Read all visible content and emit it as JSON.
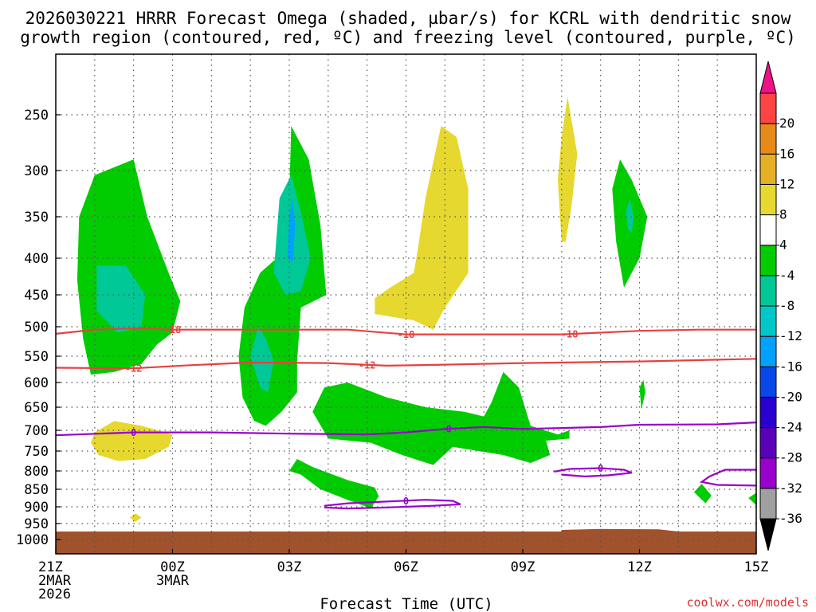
{
  "chart_data": {
    "type": "heatmap",
    "title_line1": "2026030221 HRRR Forecast Omega (shaded, µbar/s) for KCRL with dendritic snow",
    "title_line2": "growth region (contoured, red, ºC) and freezing level (contoured, purple, ºC)",
    "xlabel": "Forecast Time (UTC)",
    "credit": "coolwx.com/models",
    "x_range_hours": [
      0,
      18
    ],
    "x_ticks": [
      {
        "h": 0,
        "lines": [
          "21Z",
          "2MAR",
          "2026"
        ]
      },
      {
        "h": 3,
        "lines": [
          "00Z",
          "3MAR"
        ]
      },
      {
        "h": 6,
        "lines": [
          "03Z"
        ]
      },
      {
        "h": 9,
        "lines": [
          "06Z"
        ]
      },
      {
        "h": 12,
        "lines": [
          "09Z"
        ]
      },
      {
        "h": 15,
        "lines": [
          "12Z"
        ]
      },
      {
        "h": 18,
        "lines": [
          "15Z"
        ]
      }
    ],
    "y_range_hpa": [
      1030,
      200
    ],
    "y_ticks": [
      250,
      300,
      350,
      400,
      450,
      500,
      550,
      600,
      650,
      700,
      750,
      800,
      850,
      900,
      950,
      1000
    ],
    "colorbar": {
      "levels": [
        -36,
        -32,
        -28,
        -24,
        -20,
        -16,
        -12,
        -8,
        -4,
        4,
        8,
        12,
        16,
        20
      ],
      "colors": [
        "#a0a0a0",
        "#9a00cc",
        "#5a00b8",
        "#2a00d0",
        "#0848e8",
        "#00a2ff",
        "#00c8c8",
        "#00c896",
        "#00cc00",
        "#ffffff",
        "#e6d82e",
        "#e6b026",
        "#e88a1a",
        "#ff4444"
      ],
      "under_color": "#000000",
      "over_color": "#ee1188"
    },
    "shaded_regions": [
      {
        "level": "-8..-4",
        "color": "#00cc00",
        "hp": [
          [
            0.9,
            585
          ],
          [
            0.7,
            520
          ],
          [
            0.55,
            430
          ],
          [
            0.6,
            350
          ],
          [
            1.0,
            305
          ],
          [
            2.0,
            290
          ],
          [
            2.35,
            350
          ],
          [
            2.9,
            420
          ],
          [
            3.2,
            460
          ],
          [
            3.0,
            510
          ],
          [
            2.6,
            530
          ],
          [
            2.2,
            565
          ],
          [
            1.5,
            580
          ]
        ]
      },
      {
        "level": "-12..-8",
        "color": "#00c896",
        "hp": [
          [
            1.05,
            475
          ],
          [
            1.05,
            410
          ],
          [
            1.8,
            410
          ],
          [
            2.3,
            450
          ],
          [
            2.2,
            500
          ],
          [
            1.6,
            510
          ]
        ]
      },
      {
        "level": "4..8",
        "color": "#e6d82e",
        "hp": [
          [
            1.1,
            760
          ],
          [
            0.9,
            730
          ],
          [
            1.0,
            705
          ],
          [
            1.5,
            680
          ],
          [
            2.2,
            690
          ],
          [
            3.0,
            710
          ],
          [
            2.9,
            740
          ],
          [
            2.3,
            770
          ],
          [
            1.6,
            775
          ]
        ]
      },
      {
        "level": "4..8",
        "color": "#e6d82e",
        "hp": [
          [
            1.9,
            932
          ],
          [
            2.05,
            920
          ],
          [
            2.2,
            932
          ],
          [
            2.05,
            945
          ]
        ]
      },
      {
        "level": "-8..-4",
        "color": "#00cc00",
        "hp": [
          [
            5.1,
            680
          ],
          [
            4.8,
            630
          ],
          [
            4.7,
            550
          ],
          [
            4.85,
            470
          ],
          [
            5.25,
            420
          ],
          [
            5.8,
            395
          ],
          [
            6.0,
            330
          ],
          [
            6.05,
            260
          ],
          [
            6.5,
            290
          ],
          [
            6.8,
            360
          ],
          [
            6.95,
            450
          ],
          [
            6.3,
            470
          ],
          [
            6.2,
            560
          ],
          [
            6.2,
            620
          ],
          [
            5.8,
            660
          ],
          [
            5.4,
            690
          ]
        ]
      },
      {
        "level": "-12..-8",
        "color": "#00c896",
        "hp": [
          [
            5.25,
            610
          ],
          [
            5.0,
            550
          ],
          [
            5.2,
            500
          ],
          [
            5.4,
            520
          ],
          [
            5.6,
            560
          ],
          [
            5.45,
            620
          ]
        ]
      },
      {
        "level": "-12..-8",
        "color": "#00c896",
        "hp": [
          [
            5.6,
            420
          ],
          [
            5.75,
            330
          ],
          [
            6.05,
            305
          ],
          [
            6.3,
            345
          ],
          [
            6.55,
            400
          ],
          [
            6.3,
            445
          ],
          [
            5.9,
            450
          ]
        ]
      },
      {
        "level": "-16..-12",
        "color": "#00a2ff",
        "hp": [
          [
            5.95,
            400
          ],
          [
            6.0,
            350
          ],
          [
            6.08,
            330
          ],
          [
            6.15,
            360
          ],
          [
            6.1,
            405
          ]
        ]
      },
      {
        "level": "-8..-4",
        "color": "#00cc00",
        "hp": [
          [
            6.3,
            810
          ],
          [
            6.0,
            800
          ],
          [
            6.2,
            770
          ],
          [
            6.6,
            790
          ],
          [
            7.5,
            825
          ],
          [
            8.2,
            845
          ],
          [
            8.3,
            870
          ],
          [
            8.1,
            905
          ],
          [
            7.5,
            880
          ],
          [
            6.8,
            850
          ]
        ]
      },
      {
        "level": "-8..-4",
        "color": "#00cc00",
        "hp": [
          [
            7.0,
            720
          ],
          [
            6.6,
            660
          ],
          [
            6.9,
            610
          ],
          [
            7.5,
            600
          ],
          [
            8.5,
            630
          ],
          [
            9.5,
            650
          ],
          [
            10.5,
            660
          ],
          [
            11.0,
            670
          ],
          [
            11.2,
            640
          ],
          [
            11.5,
            580
          ],
          [
            11.9,
            610
          ],
          [
            12.2,
            690
          ],
          [
            12.9,
            710
          ],
          [
            13.2,
            700
          ],
          [
            13.2,
            720
          ],
          [
            12.6,
            725
          ],
          [
            12.7,
            760
          ],
          [
            12.2,
            780
          ],
          [
            11.5,
            760
          ],
          [
            10.2,
            740
          ],
          [
            9.7,
            785
          ],
          [
            8.9,
            760
          ],
          [
            8.1,
            730
          ]
        ]
      },
      {
        "level": "4..8",
        "color": "#e6d82e",
        "hp": [
          [
            8.2,
            480
          ],
          [
            8.2,
            455
          ],
          [
            8.6,
            440
          ],
          [
            9.2,
            420
          ],
          [
            9.3,
            390
          ],
          [
            9.5,
            330
          ],
          [
            9.9,
            260
          ],
          [
            10.3,
            270
          ],
          [
            10.6,
            320
          ],
          [
            10.6,
            420
          ],
          [
            10.0,
            470
          ],
          [
            9.7,
            505
          ],
          [
            9.2,
            490
          ]
        ]
      },
      {
        "level": "4..8",
        "color": "#e6d82e",
        "hp": [
          [
            13.0,
            380
          ],
          [
            12.9,
            310
          ],
          [
            13.0,
            270
          ],
          [
            13.15,
            235
          ],
          [
            13.4,
            285
          ],
          [
            13.25,
            340
          ],
          [
            13.1,
            380
          ]
        ]
      },
      {
        "level": "-8..-4",
        "color": "#00cc00",
        "hp": [
          [
            14.6,
            440
          ],
          [
            14.4,
            380
          ],
          [
            14.3,
            320
          ],
          [
            14.5,
            290
          ],
          [
            14.8,
            310
          ],
          [
            15.2,
            350
          ],
          [
            15.0,
            400
          ],
          [
            14.7,
            430
          ]
        ]
      },
      {
        "level": "-12..-8",
        "color": "#00c896",
        "hp": [
          [
            14.7,
            365
          ],
          [
            14.65,
            345
          ],
          [
            14.75,
            330
          ],
          [
            14.85,
            350
          ],
          [
            14.8,
            370
          ]
        ]
      },
      {
        "level": "-8..-4",
        "color": "#00cc00",
        "hp": [
          [
            15.0,
            610
          ],
          [
            15.1,
            595
          ],
          [
            15.15,
            620
          ],
          [
            15.05,
            655
          ]
        ]
      },
      {
        "level": "-8..-4",
        "color": "#00cc00",
        "hp": [
          [
            16.4,
            858
          ],
          [
            16.6,
            835
          ],
          [
            16.85,
            868
          ],
          [
            16.7,
            890
          ]
        ]
      },
      {
        "level": "-8..-4",
        "color": "#00cc00",
        "hp": [
          [
            18.0,
            860
          ],
          [
            17.8,
            875
          ],
          [
            18.0,
            895
          ]
        ]
      }
    ],
    "ground": {
      "color": "#a0522d",
      "top_hpa": 975,
      "bump": [
        [
          13.0,
          970
        ],
        [
          14.0,
          967
        ],
        [
          15.5,
          968
        ],
        [
          16.0,
          975
        ]
      ]
    },
    "contours": [
      {
        "name": "-18C",
        "label": "-18",
        "color": "#e84040",
        "hp": [
          [
            0,
            512
          ],
          [
            1.0,
            505
          ],
          [
            2.0,
            503
          ],
          [
            3.0,
            505
          ],
          [
            5.0,
            505
          ],
          [
            7.5,
            505
          ],
          [
            9.0,
            513
          ],
          [
            11.0,
            513
          ],
          [
            13.0,
            513
          ],
          [
            15.0,
            507
          ],
          [
            16.5,
            505
          ],
          [
            18.0,
            505
          ]
        ],
        "label_at": [
          3.0,
          9.0,
          13.2
        ]
      },
      {
        "name": "-12C",
        "label": "-12",
        "color": "#e84040",
        "hp": [
          [
            0,
            572
          ],
          [
            2.0,
            573
          ],
          [
            3.5,
            567
          ],
          [
            5.0,
            562
          ],
          [
            7.0,
            563
          ],
          [
            8.5,
            568
          ],
          [
            10.0,
            566
          ],
          [
            12.0,
            563
          ],
          [
            15.0,
            560
          ],
          [
            18.0,
            555
          ]
        ],
        "label_at": [
          2.0,
          8.0
        ]
      },
      {
        "name": "0C",
        "label": "0",
        "color": "#9a00cc",
        "hp": [
          [
            0,
            712
          ],
          [
            2.0,
            705
          ],
          [
            4.0,
            705
          ],
          [
            6.0,
            708
          ],
          [
            8.0,
            710
          ],
          [
            9.0,
            705
          ],
          [
            10.0,
            697
          ],
          [
            11.0,
            693
          ],
          [
            12.0,
            697
          ],
          [
            14.0,
            693
          ],
          [
            15.0,
            688
          ],
          [
            17.0,
            687
          ],
          [
            18.0,
            683
          ]
        ],
        "label_at": [
          2.0,
          10.1
        ]
      },
      {
        "name": "0C-b",
        "label": "0",
        "color": "#9a00cc",
        "hp": [
          [
            6.9,
            897
          ],
          [
            7.5,
            890
          ],
          [
            8.5,
            885
          ],
          [
            9.5,
            880
          ],
          [
            10.2,
            883
          ],
          [
            10.4,
            893
          ],
          [
            9.7,
            897
          ],
          [
            8.5,
            902
          ],
          [
            7.5,
            905
          ],
          [
            6.9,
            902
          ]
        ],
        "label_at": [
          9.0
        ]
      },
      {
        "name": "0C-c",
        "label": "0",
        "color": "#9a00cc",
        "hp": [
          [
            12.8,
            802
          ],
          [
            13.2,
            795
          ],
          [
            14.0,
            793
          ],
          [
            14.6,
            797
          ],
          [
            14.8,
            805
          ],
          [
            14.2,
            812
          ],
          [
            13.6,
            815
          ],
          [
            13.0,
            810
          ]
        ],
        "label_at": [
          14.0
        ]
      },
      {
        "name": "0C-d",
        "label": "",
        "color": "#9a00cc",
        "hp": [
          [
            18.0,
            797
          ],
          [
            17.2,
            797
          ],
          [
            16.8,
            815
          ],
          [
            16.6,
            830
          ],
          [
            17.0,
            838
          ],
          [
            18.0,
            840
          ]
        ],
        "label_at": []
      }
    ]
  }
}
